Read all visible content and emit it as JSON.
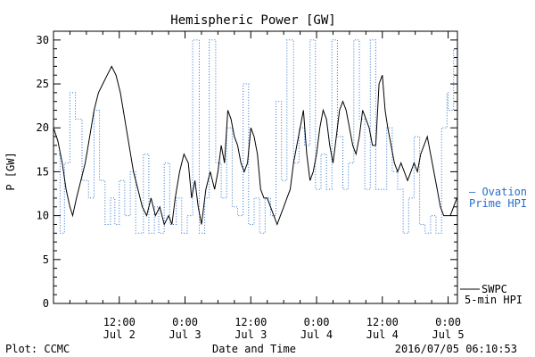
{
  "chart_data": {
    "type": "line",
    "title": "Hemispheric Power [GW]",
    "ylabel": "P [GW]",
    "xlabel": "Date and Time",
    "ylim": [
      0,
      31
    ],
    "yticks": [
      0,
      5,
      10,
      15,
      20,
      25,
      30
    ],
    "x_ticks": [
      {
        "time": "12:00",
        "date": "Jul 2",
        "hours": 12
      },
      {
        "time": "0:00",
        "date": "Jul 3",
        "hours": 24
      },
      {
        "time": "12:00",
        "date": "Jul 3",
        "hours": 36
      },
      {
        "time": "0:00",
        "date": "Jul 4",
        "hours": 48
      },
      {
        "time": "12:00",
        "date": "Jul 4",
        "hours": 60
      },
      {
        "time": "0:00",
        "date": "Jul 5",
        "hours": 72
      }
    ],
    "xlim_hours": [
      0,
      73.7
    ],
    "series": [
      {
        "name": "SWPC 5-min HPI",
        "legend_line1": "SWPC",
        "legend_line2": "5-min HPI",
        "color": "#000000",
        "style": "solid",
        "points": [
          [
            0,
            20
          ],
          [
            0.8,
            18.5
          ],
          [
            1.6,
            16
          ],
          [
            2.3,
            13
          ],
          [
            3.0,
            11
          ],
          [
            3.5,
            10
          ],
          [
            4.2,
            12
          ],
          [
            5.0,
            14
          ],
          [
            5.8,
            16
          ],
          [
            6.6,
            19
          ],
          [
            7.4,
            22
          ],
          [
            8.2,
            24
          ],
          [
            9.0,
            25
          ],
          [
            9.8,
            26
          ],
          [
            10.6,
            27
          ],
          [
            11.4,
            26
          ],
          [
            12.2,
            24
          ],
          [
            13.0,
            21
          ],
          [
            13.8,
            18
          ],
          [
            14.6,
            15
          ],
          [
            15.4,
            13
          ],
          [
            16.2,
            11
          ],
          [
            17.0,
            10
          ],
          [
            17.8,
            12
          ],
          [
            18.6,
            10
          ],
          [
            19.4,
            11
          ],
          [
            20.2,
            9
          ],
          [
            21.0,
            10
          ],
          [
            21.6,
            9
          ],
          [
            22.2,
            12
          ],
          [
            23.0,
            15
          ],
          [
            23.8,
            17
          ],
          [
            24.6,
            16
          ],
          [
            25.2,
            12
          ],
          [
            25.8,
            14
          ],
          [
            26.4,
            11
          ],
          [
            27.0,
            9
          ],
          [
            27.8,
            13
          ],
          [
            28.6,
            15
          ],
          [
            29.4,
            13
          ],
          [
            30.0,
            15
          ],
          [
            30.6,
            18
          ],
          [
            31.2,
            16
          ],
          [
            31.8,
            22
          ],
          [
            32.4,
            21
          ],
          [
            33.0,
            19
          ],
          [
            33.6,
            18
          ],
          [
            34.2,
            16
          ],
          [
            34.8,
            15
          ],
          [
            35.4,
            16
          ],
          [
            36.0,
            20
          ],
          [
            36.6,
            19
          ],
          [
            37.2,
            17
          ],
          [
            37.8,
            13
          ],
          [
            38.4,
            12
          ],
          [
            39.0,
            12
          ],
          [
            39.6,
            11
          ],
          [
            40.2,
            10
          ],
          [
            40.8,
            9
          ],
          [
            41.4,
            10
          ],
          [
            42.0,
            11
          ],
          [
            42.6,
            12
          ],
          [
            43.2,
            13
          ],
          [
            43.8,
            16
          ],
          [
            44.4,
            18
          ],
          [
            45.0,
            20
          ],
          [
            45.6,
            22
          ],
          [
            46.2,
            17
          ],
          [
            46.8,
            14
          ],
          [
            47.4,
            15
          ],
          [
            48.0,
            17
          ],
          [
            48.6,
            20
          ],
          [
            49.2,
            22
          ],
          [
            49.8,
            21
          ],
          [
            50.4,
            18
          ],
          [
            51.0,
            16
          ],
          [
            51.6,
            19
          ],
          [
            52.2,
            22
          ],
          [
            52.8,
            23
          ],
          [
            53.4,
            22
          ],
          [
            54.0,
            20
          ],
          [
            54.6,
            18
          ],
          [
            55.2,
            17
          ],
          [
            55.8,
            19
          ],
          [
            56.4,
            22
          ],
          [
            57.0,
            21
          ],
          [
            57.6,
            20
          ],
          [
            58.2,
            18
          ],
          [
            58.8,
            18
          ],
          [
            59.4,
            25
          ],
          [
            60.0,
            26
          ],
          [
            60.5,
            22
          ],
          [
            61.0,
            20
          ],
          [
            61.6,
            18
          ],
          [
            62.2,
            16
          ],
          [
            62.8,
            15
          ],
          [
            63.4,
            16
          ],
          [
            64.0,
            15
          ],
          [
            64.6,
            14
          ],
          [
            65.2,
            15
          ],
          [
            65.8,
            16
          ],
          [
            66.4,
            15
          ],
          [
            67.0,
            17
          ],
          [
            67.6,
            18
          ],
          [
            68.2,
            19
          ],
          [
            68.8,
            17
          ],
          [
            69.4,
            15
          ],
          [
            70.0,
            13
          ],
          [
            70.6,
            11
          ],
          [
            71.2,
            10
          ],
          [
            71.8,
            10
          ],
          [
            72.4,
            10
          ],
          [
            73.0,
            11
          ],
          [
            73.6,
            12
          ]
        ]
      },
      {
        "name": "Ovation Prime HPI",
        "legend_line1": "— Ovation",
        "legend_line2": "Prime HPI",
        "color": "#2a6fc9",
        "style": "dotted",
        "points": [
          [
            0,
            17
          ],
          [
            1.2,
            17
          ],
          [
            1.2,
            8
          ],
          [
            2.0,
            8
          ],
          [
            2.0,
            16
          ],
          [
            3.0,
            16
          ],
          [
            3.0,
            24
          ],
          [
            4.0,
            24
          ],
          [
            4.0,
            21
          ],
          [
            5.2,
            21
          ],
          [
            5.2,
            14
          ],
          [
            6.4,
            14
          ],
          [
            6.4,
            12
          ],
          [
            7.4,
            12
          ],
          [
            7.4,
            22
          ],
          [
            8.4,
            22
          ],
          [
            8.4,
            14
          ],
          [
            9.4,
            14
          ],
          [
            9.4,
            9
          ],
          [
            10.4,
            9
          ],
          [
            10.4,
            12
          ],
          [
            11.2,
            12
          ],
          [
            11.2,
            9
          ],
          [
            12.0,
            9
          ],
          [
            12.0,
            14
          ],
          [
            13.0,
            14
          ],
          [
            13.0,
            10
          ],
          [
            14.0,
            10
          ],
          [
            14.0,
            15
          ],
          [
            15.0,
            15
          ],
          [
            15.0,
            8
          ],
          [
            16.4,
            8
          ],
          [
            16.4,
            17
          ],
          [
            17.4,
            17
          ],
          [
            17.4,
            8
          ],
          [
            18.4,
            8
          ],
          [
            18.4,
            11
          ],
          [
            19.2,
            11
          ],
          [
            19.2,
            8
          ],
          [
            20.2,
            8
          ],
          [
            20.2,
            16
          ],
          [
            21.2,
            16
          ],
          [
            21.2,
            9
          ],
          [
            22.4,
            9
          ],
          [
            22.4,
            12
          ],
          [
            23.4,
            12
          ],
          [
            23.4,
            8
          ],
          [
            24.4,
            8
          ],
          [
            24.4,
            10
          ],
          [
            25.4,
            10
          ],
          [
            25.4,
            30
          ],
          [
            26.6,
            30
          ],
          [
            26.6,
            8
          ],
          [
            27.6,
            8
          ],
          [
            27.6,
            12
          ],
          [
            28.4,
            12
          ],
          [
            28.4,
            30
          ],
          [
            29.6,
            30
          ],
          [
            29.6,
            16
          ],
          [
            30.6,
            16
          ],
          [
            30.6,
            12
          ],
          [
            31.6,
            12
          ],
          [
            31.6,
            20
          ],
          [
            32.6,
            20
          ],
          [
            32.6,
            11
          ],
          [
            33.6,
            11
          ],
          [
            33.6,
            10
          ],
          [
            34.6,
            10
          ],
          [
            34.6,
            25
          ],
          [
            35.6,
            25
          ],
          [
            35.6,
            9
          ],
          [
            36.6,
            9
          ],
          [
            36.6,
            12
          ],
          [
            37.6,
            12
          ],
          [
            37.6,
            8
          ],
          [
            38.6,
            8
          ],
          [
            38.6,
            12
          ],
          [
            39.6,
            12
          ],
          [
            39.6,
            10
          ],
          [
            40.6,
            10
          ],
          [
            40.6,
            23
          ],
          [
            41.6,
            23
          ],
          [
            41.6,
            14
          ],
          [
            42.6,
            14
          ],
          [
            42.6,
            30
          ],
          [
            43.8,
            30
          ],
          [
            43.8,
            16
          ],
          [
            44.8,
            16
          ],
          [
            44.8,
            20
          ],
          [
            45.8,
            20
          ],
          [
            45.8,
            18
          ],
          [
            46.8,
            18
          ],
          [
            46.8,
            30
          ],
          [
            47.8,
            30
          ],
          [
            47.8,
            13
          ],
          [
            48.8,
            13
          ],
          [
            48.8,
            17
          ],
          [
            49.8,
            17
          ],
          [
            49.8,
            13
          ],
          [
            50.8,
            13
          ],
          [
            50.8,
            30
          ],
          [
            51.8,
            30
          ],
          [
            51.8,
            19
          ],
          [
            52.8,
            19
          ],
          [
            52.8,
            13
          ],
          [
            53.8,
            13
          ],
          [
            53.8,
            16
          ],
          [
            54.8,
            16
          ],
          [
            54.8,
            30
          ],
          [
            55.8,
            30
          ],
          [
            55.8,
            21
          ],
          [
            56.8,
            21
          ],
          [
            56.8,
            13
          ],
          [
            57.8,
            13
          ],
          [
            57.8,
            30
          ],
          [
            58.8,
            30
          ],
          [
            58.8,
            13
          ],
          [
            59.8,
            13
          ],
          [
            59.8,
            13
          ],
          [
            60.8,
            13
          ],
          [
            60.8,
            20
          ],
          [
            61.8,
            20
          ],
          [
            61.8,
            15
          ],
          [
            62.8,
            15
          ],
          [
            62.8,
            13
          ],
          [
            63.8,
            13
          ],
          [
            63.8,
            8
          ],
          [
            64.8,
            8
          ],
          [
            64.8,
            12
          ],
          [
            65.8,
            12
          ],
          [
            65.8,
            19
          ],
          [
            66.8,
            19
          ],
          [
            66.8,
            9
          ],
          [
            67.8,
            9
          ],
          [
            67.8,
            8
          ],
          [
            68.8,
            8
          ],
          [
            68.8,
            10
          ],
          [
            69.8,
            10
          ],
          [
            69.8,
            8
          ],
          [
            70.8,
            8
          ],
          [
            70.8,
            20
          ],
          [
            71.8,
            20
          ],
          [
            71.8,
            24
          ],
          [
            72.0,
            24
          ],
          [
            72.0,
            22
          ],
          [
            73.0,
            22
          ],
          [
            73.0,
            29
          ],
          [
            73.6,
            29
          ]
        ]
      }
    ],
    "footer_left": "Plot: CCMC",
    "footer_right": "2016/07/05 06:10:53"
  }
}
